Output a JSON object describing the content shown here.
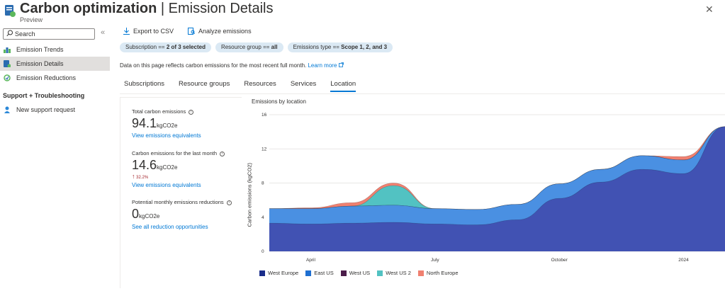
{
  "header": {
    "title_bold": "Carbon optimization",
    "title_sep": " | ",
    "title_rest": "Emission Details",
    "subtitle": "Preview",
    "more": "···",
    "close": "✕"
  },
  "sidebar": {
    "search_placeholder": "Search",
    "collapse": "«",
    "items": [
      {
        "label": "Emission Trends",
        "icon": "trends-icon"
      },
      {
        "label": "Emission Details",
        "icon": "details-icon"
      },
      {
        "label": "Emission Reductions",
        "icon": "reductions-icon"
      }
    ],
    "section": "Support + Troubleshooting",
    "support_item": "New support request"
  },
  "toolbar": {
    "export": "Export to CSV",
    "analyze": "Analyze emissions"
  },
  "filters": [
    {
      "text": "Subscription == ",
      "value": "2 of 3 selected"
    },
    {
      "text": "Resource group == ",
      "value": "all"
    },
    {
      "text": "Emissions type == ",
      "value": "Scope 1, 2, and 3"
    }
  ],
  "info": {
    "text": "Data on this page reflects carbon emissions for the most recent full month.",
    "link": "Learn more"
  },
  "tabs": [
    "Subscriptions",
    "Resource groups",
    "Resources",
    "Services",
    "Location"
  ],
  "active_tab": "Location",
  "summary": {
    "total_label": "Total carbon emissions",
    "total_value": "94.1",
    "total_unit": "kgCO2e",
    "total_link": "View emissions equivalents",
    "month_label": "Carbon emissions for the last month",
    "month_value": "14.6",
    "month_unit": "kgCO2e",
    "month_change": "32.2%",
    "month_link": "View emissions equivalents",
    "reduction_label": "Potential monthly emissions reductions",
    "reduction_value": "0",
    "reduction_unit": "kgCO2e",
    "reduction_link": "See all reduction opportunities"
  },
  "chart_data": {
    "type": "area",
    "title": "Emissions by location",
    "ylabel": "Carbon emissions (kgCO2)",
    "ylim": [
      0,
      16
    ],
    "yticks": [
      0,
      4,
      8,
      12,
      16
    ],
    "xticks": [
      "April",
      "July",
      "October",
      "2024"
    ],
    "x": [
      "Mar",
      "Apr",
      "May",
      "Jun",
      "Jul",
      "Aug",
      "Sep",
      "Oct",
      "Nov",
      "Dec",
      "Jan",
      "Feb"
    ],
    "series": [
      {
        "name": "West Europe",
        "color": "#4152b3",
        "values": [
          3.3,
          3.2,
          3.3,
          3.4,
          3.2,
          3.1,
          3.7,
          6.2,
          8.1,
          9.6,
          9.1,
          14.6
        ]
      },
      {
        "name": "East US",
        "color": "#4a90e2",
        "values": [
          1.7,
          1.8,
          2.0,
          2.0,
          1.8,
          1.8,
          1.8,
          1.7,
          1.5,
          1.6,
          1.6,
          0.0
        ]
      },
      {
        "name": "West US",
        "color": "#4b1d4a",
        "values": [
          0,
          0,
          0,
          0,
          0,
          0,
          0,
          0,
          0,
          0,
          0,
          0
        ]
      },
      {
        "name": "West US 2",
        "color": "#52c2c2",
        "values": [
          0,
          0,
          0,
          2.3,
          0,
          0,
          0,
          0,
          0,
          0,
          0,
          0
        ]
      },
      {
        "name": "North Europe",
        "color": "#f08070",
        "values": [
          0,
          0.1,
          0.4,
          0.3,
          0,
          0,
          0,
          0,
          0,
          0,
          0.4,
          0
        ]
      }
    ],
    "grid": true,
    "legend": "bottom"
  }
}
